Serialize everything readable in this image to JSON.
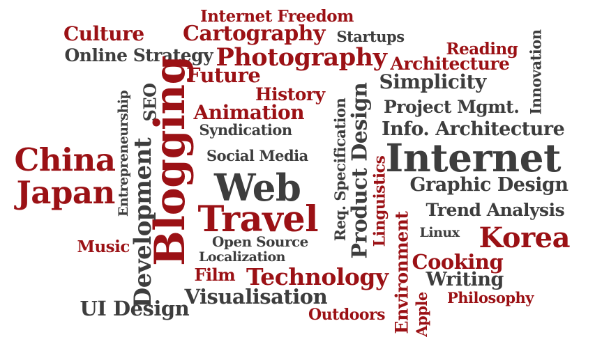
{
  "colors": {
    "red": "#9b1115",
    "dark": "#3d3d3d",
    "background": "#ffffff"
  },
  "words": [
    {
      "text": "Internet Freedom",
      "color": "red"
    },
    {
      "text": "Culture",
      "color": "red"
    },
    {
      "text": "Cartography",
      "color": "red"
    },
    {
      "text": "Startups",
      "color": "dark"
    },
    {
      "text": "Innovation",
      "color": "dark"
    },
    {
      "text": "Online Strategy",
      "color": "dark"
    },
    {
      "text": "Photography",
      "color": "red"
    },
    {
      "text": "Reading",
      "color": "red"
    },
    {
      "text": "Architecture",
      "color": "red"
    },
    {
      "text": "Future",
      "color": "red"
    },
    {
      "text": "Simplicity",
      "color": "dark"
    },
    {
      "text": "History",
      "color": "red"
    },
    {
      "text": "Entrepreneurship",
      "color": "dark"
    },
    {
      "text": "SEO",
      "color": "dark"
    },
    {
      "text": "Blogging",
      "color": "red"
    },
    {
      "text": "Req. Specification",
      "color": "dark"
    },
    {
      "text": "Product Design",
      "color": "dark"
    },
    {
      "text": "Project Mgmt.",
      "color": "dark"
    },
    {
      "text": "Animation",
      "color": "red"
    },
    {
      "text": "Syndication",
      "color": "dark"
    },
    {
      "text": "Info. Architecture",
      "color": "dark"
    },
    {
      "text": "China",
      "color": "red"
    },
    {
      "text": "Development",
      "color": "dark"
    },
    {
      "text": "Social Media",
      "color": "dark"
    },
    {
      "text": "Linguistics",
      "color": "red"
    },
    {
      "text": "Internet",
      "color": "dark"
    },
    {
      "text": "Japan",
      "color": "red"
    },
    {
      "text": "Web",
      "color": "dark"
    },
    {
      "text": "Graphic Design",
      "color": "dark"
    },
    {
      "text": "Travel",
      "color": "red"
    },
    {
      "text": "Trend Analysis",
      "color": "dark"
    },
    {
      "text": "Environment",
      "color": "red"
    },
    {
      "text": "Linux",
      "color": "dark"
    },
    {
      "text": "Korea",
      "color": "red"
    },
    {
      "text": "Music",
      "color": "red"
    },
    {
      "text": "Open Source",
      "color": "dark"
    },
    {
      "text": "Localization",
      "color": "dark"
    },
    {
      "text": "Cooking",
      "color": "red"
    },
    {
      "text": "Film",
      "color": "red"
    },
    {
      "text": "Technology",
      "color": "red"
    },
    {
      "text": "Writing",
      "color": "dark"
    },
    {
      "text": "Apple",
      "color": "red"
    },
    {
      "text": "Philosophy",
      "color": "red"
    },
    {
      "text": "Visualisation",
      "color": "dark"
    },
    {
      "text": "UI Design",
      "color": "dark"
    },
    {
      "text": "Outdoors",
      "color": "red"
    }
  ]
}
